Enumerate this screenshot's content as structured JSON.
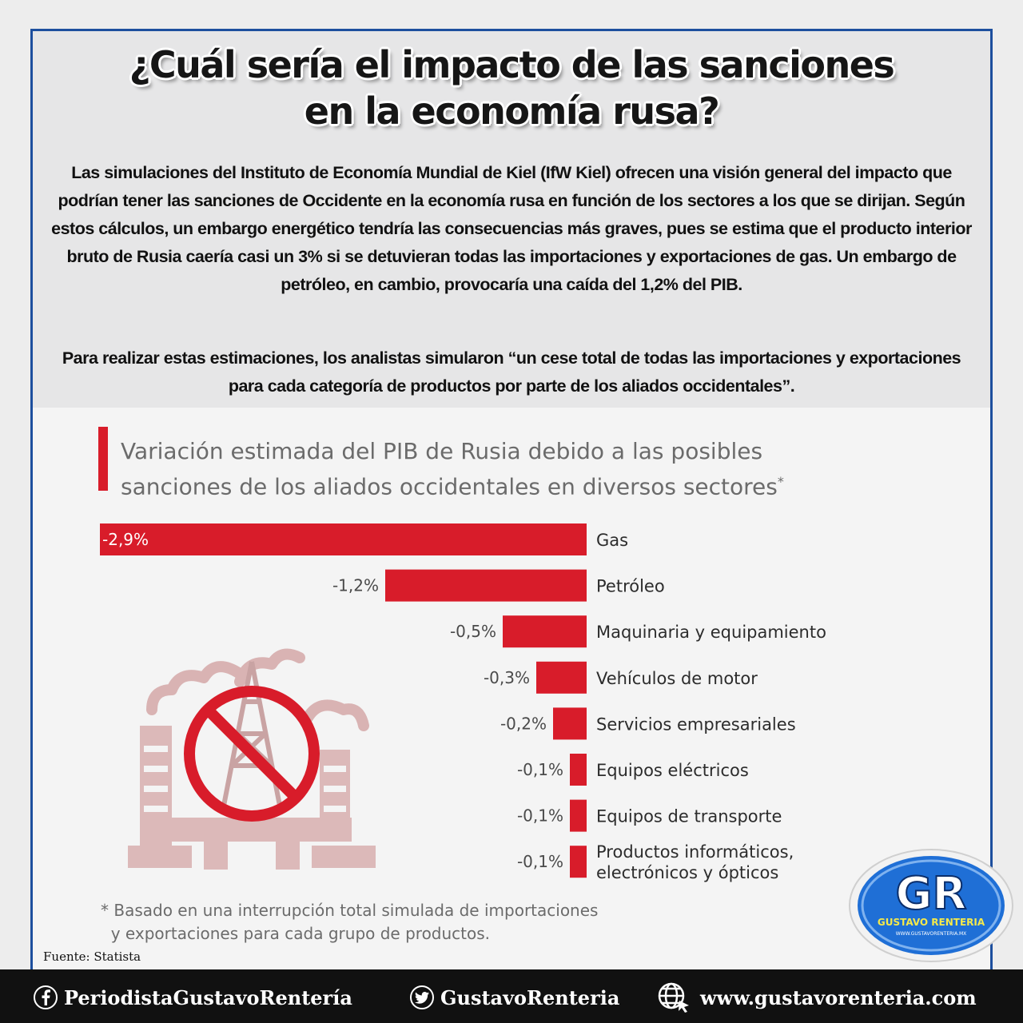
{
  "header": {
    "title_line1": "¿Cuál sería el impacto de las sanciones",
    "title_line2": "en la economía rusa?",
    "intro_p1": "Las simulaciones del Instituto de Economía Mundial de Kiel (IfW Kiel) ofrecen una visión general del impacto que podrían tener las sanciones de Occidente en la economía rusa en función de los sectores a los que se dirijan. Según estos cálculos, un embargo energético tendría las consecuencias más graves, pues se estima que el producto interior bruto de Rusia caería casi un 3% si se detuvieran todas las importaciones y exportaciones de gas. Un embargo de petróleo, en cambio, provocaría una caída del 1,2% del PIB.",
    "intro_p2": "Para realizar estas estimaciones, los analistas simularon “un cese total de todas las importaciones y exportaciones para cada categoría de productos por parte de los aliados occidentales”."
  },
  "chart_data": {
    "type": "bar",
    "orientation": "horizontal",
    "title": "Variación estimada del PIB de Rusia debido a las posibles sanciones de los aliados occidentales en diversos sectores",
    "title_line1": "Variación estimada del PIB de Rusia debido a las posibles",
    "title_line2": "sanciones de los aliados occidentales en diversos sectores",
    "title_marker": "*",
    "categories": [
      "Gas",
      "Petróleo",
      "Maquinaria y equipamiento",
      "Vehículos de motor",
      "Servicios empresariales",
      "Equipos eléctricos",
      "Equipos de transporte",
      "Productos informáticos, electrónicos y ópticos"
    ],
    "category_lines": [
      [
        "Gas"
      ],
      [
        "Petróleo"
      ],
      [
        "Maquinaria y equipamiento"
      ],
      [
        "Vehículos de motor"
      ],
      [
        "Servicios empresariales"
      ],
      [
        "Equipos eléctricos"
      ],
      [
        "Equipos de transporte"
      ],
      [
        "Productos informáticos,",
        "electrónicos y ópticos"
      ]
    ],
    "values": [
      -2.9,
      -1.2,
      -0.5,
      -0.3,
      -0.2,
      -0.1,
      -0.1,
      -0.1
    ],
    "value_labels": [
      "-2,9%",
      "-1,2%",
      "-0,5%",
      "-0,3%",
      "-0,2%",
      "-0,1%",
      "-0,1%",
      "-0,1%"
    ],
    "unit": "%",
    "xlim": [
      -2.9,
      0
    ],
    "bar_color": "#d81c2a",
    "grid": false,
    "legend": "none",
    "footnote_line1": "Basado en una interrupción total simulada de importaciones",
    "footnote_line2": "y exportaciones para cada grupo de productos.",
    "footnote_marker": "*"
  },
  "source": "Fuente: Statista",
  "footer": {
    "facebook": "PeriodistaGustavoRentería",
    "twitter": "GustavoRenteria",
    "website": "www.gustavorenteria.com"
  },
  "logo": {
    "initials": "GR",
    "name": "GUSTAVO RENTERIA",
    "url": "WWW.GUSTAVORENTERIA.MX"
  },
  "colors": {
    "accent": "#d81c2a",
    "frame": "#1d4f9e",
    "footer_bg": "#111111",
    "logo_blue": "#1f6fd6"
  }
}
